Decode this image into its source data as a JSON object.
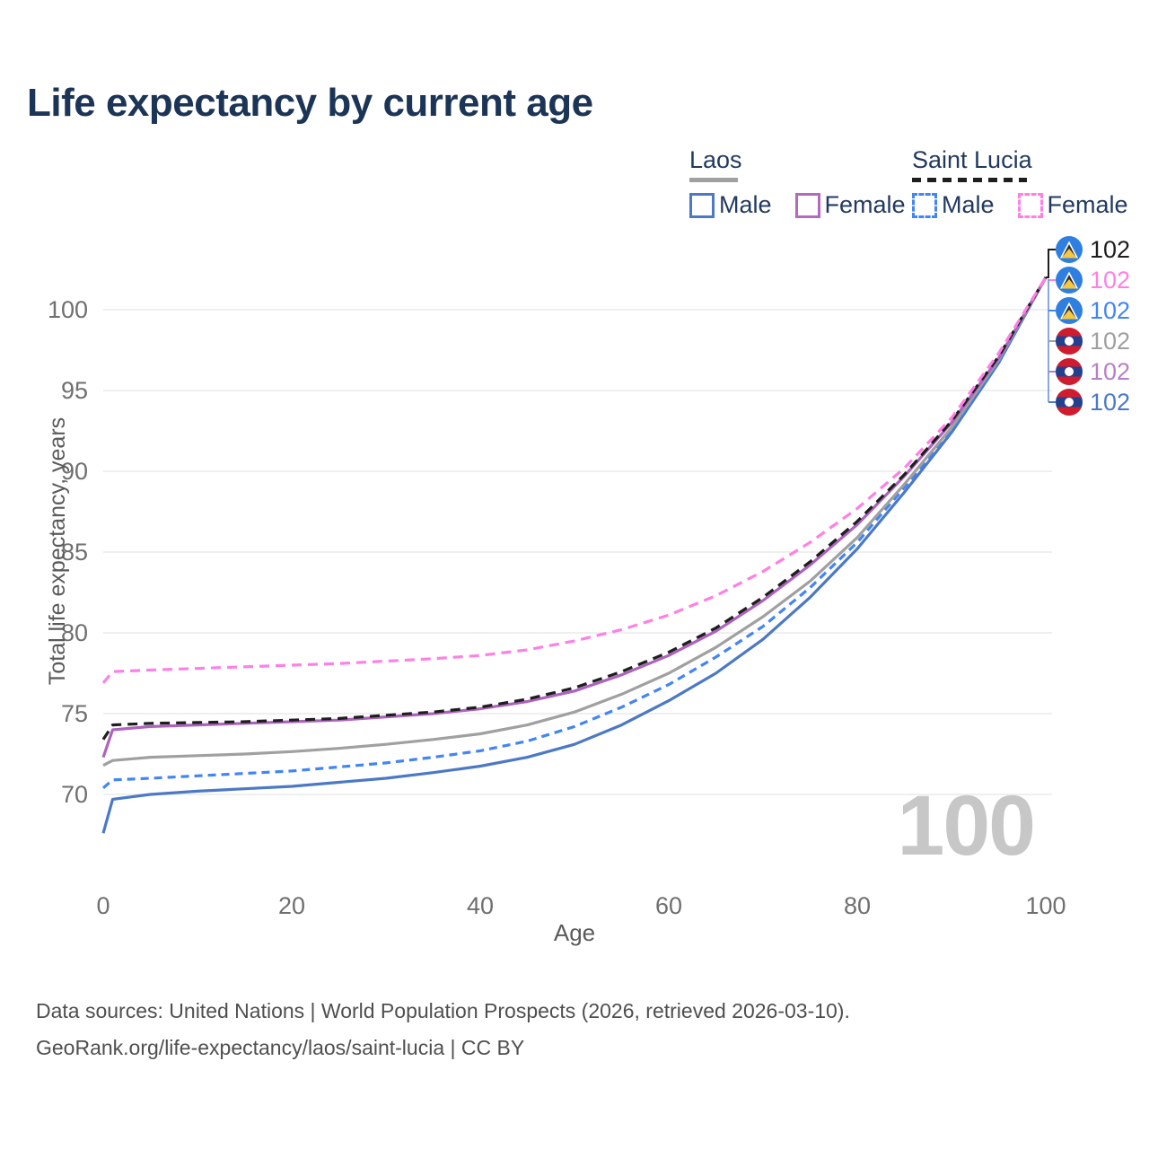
{
  "page": {
    "title": "Life expectancy by current age"
  },
  "legend": {
    "groups": [
      {
        "label": "Laos",
        "underline_style": "solid",
        "underline_color": "#a0a0a0",
        "items": [
          {
            "label": "Male",
            "color": "#4b79c6",
            "dashed": false
          },
          {
            "label": "Female",
            "color": "#b468bf",
            "dashed": false
          }
        ]
      },
      {
        "label": "Saint Lucia",
        "underline_style": "dashed",
        "underline_color": "#1e1e1e",
        "items": [
          {
            "label": "Male",
            "color": "#4285f4",
            "dashed": true
          },
          {
            "label": "Female",
            "color": "#ff80e5",
            "dashed": true
          }
        ]
      }
    ]
  },
  "chart_data": {
    "type": "line",
    "title": "Life expectancy by current age",
    "xlabel": "Age",
    "ylabel": "Total life expectancy, years",
    "xlim": [
      0,
      100
    ],
    "ylim": [
      67,
      103
    ],
    "x_ticks": [
      0,
      20,
      40,
      60,
      80,
      100
    ],
    "y_ticks": [
      70,
      75,
      80,
      85,
      90,
      95,
      100
    ],
    "grid": "horizontal-only",
    "legend_position": "top-right",
    "watermark": "100",
    "ages": [
      0,
      1,
      5,
      10,
      15,
      20,
      25,
      30,
      35,
      40,
      45,
      50,
      55,
      60,
      65,
      70,
      75,
      80,
      85,
      90,
      95,
      100
    ],
    "series": [
      {
        "name": "Laos Male",
        "country": "Laos",
        "sex": "male",
        "line": "solid",
        "color": "#4b79c6",
        "values": [
          67.6,
          69.7,
          70.0,
          70.2,
          70.35,
          70.5,
          70.75,
          71.0,
          71.35,
          71.75,
          72.3,
          73.1,
          74.3,
          75.8,
          77.5,
          79.6,
          82.2,
          85.2,
          88.7,
          92.4,
          96.7,
          102
        ]
      },
      {
        "name": "Saint Lucia Male",
        "country": "Saint Lucia",
        "sex": "male",
        "line": "dashed",
        "color": "#4285f4",
        "values": [
          70.4,
          70.9,
          71.0,
          71.15,
          71.3,
          71.45,
          71.7,
          71.95,
          72.3,
          72.7,
          73.3,
          74.2,
          75.4,
          76.8,
          78.5,
          80.4,
          82.8,
          85.6,
          89.0,
          92.6,
          96.8,
          102
        ]
      },
      {
        "name": "Laos All",
        "country": "Laos",
        "sex": "all",
        "line": "solid",
        "color": "#a0a0a0",
        "values": [
          71.8,
          72.1,
          72.3,
          72.4,
          72.5,
          72.65,
          72.85,
          73.1,
          73.4,
          73.75,
          74.3,
          75.1,
          76.2,
          77.5,
          79.1,
          81.0,
          83.2,
          85.9,
          89.2,
          92.7,
          96.9,
          102
        ]
      },
      {
        "name": "Laos Female",
        "country": "Laos",
        "sex": "female",
        "line": "solid",
        "color": "#ad63bd",
        "values": [
          72.3,
          74.0,
          74.2,
          74.3,
          74.4,
          74.5,
          74.6,
          74.8,
          75.0,
          75.3,
          75.75,
          76.4,
          77.4,
          78.6,
          80.1,
          82.0,
          84.2,
          86.7,
          89.7,
          93.0,
          97.0,
          102
        ]
      },
      {
        "name": "Saint Lucia All",
        "country": "Saint Lucia",
        "sex": "all",
        "line": "dashed",
        "color": "#1e1e1e",
        "values": [
          73.4,
          74.3,
          74.4,
          74.45,
          74.5,
          74.6,
          74.7,
          74.9,
          75.1,
          75.4,
          75.9,
          76.6,
          77.6,
          78.8,
          80.3,
          82.2,
          84.4,
          86.9,
          89.8,
          93.1,
          97.1,
          102
        ]
      },
      {
        "name": "Saint Lucia Female",
        "country": "Saint Lucia",
        "sex": "female",
        "line": "dashed",
        "color": "#ff80e5",
        "values": [
          76.9,
          77.6,
          77.7,
          77.8,
          77.9,
          78.0,
          78.1,
          78.25,
          78.4,
          78.6,
          78.95,
          79.5,
          80.2,
          81.1,
          82.3,
          83.8,
          85.6,
          87.7,
          90.2,
          93.3,
          97.3,
          102
        ]
      }
    ],
    "end_labels": [
      {
        "value": "102",
        "series": "Saint Lucia All",
        "flag": "saint-lucia",
        "color": "#1e1e1e"
      },
      {
        "value": "102",
        "series": "Saint Lucia Female",
        "flag": "saint-lucia",
        "color": "#ff80e5"
      },
      {
        "value": "102",
        "series": "Saint Lucia Male",
        "flag": "saint-lucia",
        "color": "#4285f4"
      },
      {
        "value": "102",
        "series": "Laos All",
        "flag": "laos",
        "color": "#a0a0a0"
      },
      {
        "value": "102",
        "series": "Laos Female",
        "flag": "laos",
        "color": "#b97fc6"
      },
      {
        "value": "102",
        "series": "Laos Male",
        "flag": "laos",
        "color": "#4b79c6"
      }
    ]
  },
  "footer": {
    "line1": "Data sources: United Nations | World Population Prospects (2026, retrieved 2026-03-10).",
    "line2": "GeoRank.org/life-expectancy/laos/saint-lucia | CC BY"
  }
}
